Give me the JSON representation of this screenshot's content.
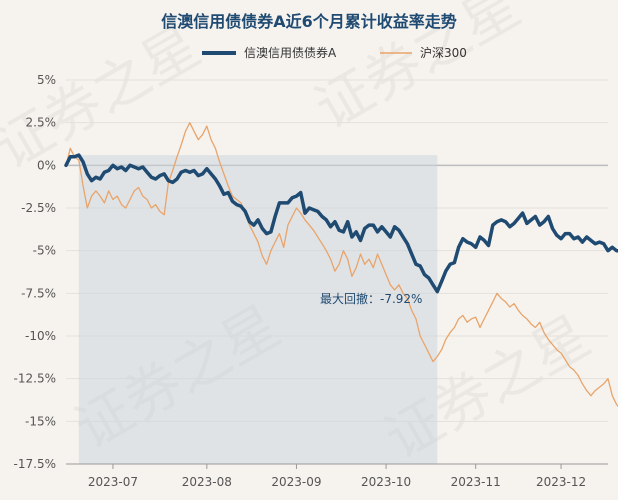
{
  "chart_data": {
    "type": "line",
    "title": "信澳信用债债券A近6个月累计收益率走势",
    "xlabel": "",
    "ylabel": "",
    "ylim": [
      -17.5,
      5
    ],
    "y_ticks": [
      "5%",
      "2.5%",
      "0%",
      "-2.5%",
      "-5%",
      "-7.5%",
      "-10%",
      "-12.5%",
      "-15%",
      "-17.5%"
    ],
    "y_tick_values": [
      5,
      2.5,
      0,
      -2.5,
      -5,
      -7.5,
      -10,
      -12.5,
      -15,
      -17.5
    ],
    "x_tick_labels": [
      "2023-07",
      "2023-08",
      "2023-09",
      "2023-10",
      "2023-11",
      "2023-12"
    ],
    "x_tick_positions": [
      11,
      33,
      54,
      75,
      96,
      116
    ],
    "x_range": [
      0,
      127
    ],
    "grid": true,
    "legend_position": "top-center",
    "drawdown_region": [
      3,
      87
    ],
    "annotation": "最大回撤：-7.92%",
    "watermark": "证券之星",
    "series": [
      {
        "name": "信澳信用债债券A",
        "color": "#1f4a72",
        "values": [
          0,
          0.5,
          0.5,
          0.6,
          0.2,
          -0.5,
          -0.9,
          -0.7,
          -0.8,
          -0.4,
          -0.3,
          0,
          -0.2,
          -0.1,
          -0.3,
          0,
          -0.1,
          -0.2,
          -0.1,
          -0.4,
          -0.7,
          -0.8,
          -0.6,
          -0.5,
          -0.9,
          -1.0,
          -0.8,
          -0.4,
          -0.3,
          -0.4,
          -0.3,
          -0.6,
          -0.5,
          -0.2,
          -0.5,
          -0.8,
          -1.2,
          -1.7,
          -1.6,
          -2.1,
          -2.3,
          -2.4,
          -2.7,
          -3.3,
          -3.5,
          -3.2,
          -3.7,
          -4.0,
          -3.9,
          -3.0,
          -2.2,
          -2.2,
          -2.2,
          -1.9,
          -1.8,
          -1.6,
          -2.8,
          -2.5,
          -2.6,
          -2.7,
          -3.0,
          -3.2,
          -3.6,
          -3.3,
          -3.8,
          -3.9,
          -3.3,
          -4.2,
          -3.9,
          -4.4,
          -3.7,
          -3.5,
          -3.5,
          -3.9,
          -3.6,
          -3.9,
          -4.2,
          -3.6,
          -3.8,
          -4.2,
          -4.6,
          -5.2,
          -5.8,
          -5.9,
          -6.4,
          -6.6,
          -7.0,
          -7.4,
          -6.8,
          -6.2,
          -5.8,
          -5.7,
          -4.8,
          -4.3,
          -4.5,
          -4.6,
          -4.8,
          -4.2,
          -4.4,
          -4.7,
          -3.5,
          -3.3,
          -3.2,
          -3.3,
          -3.6,
          -3.4,
          -3.1,
          -2.8,
          -3.4,
          -3.2,
          -3.0,
          -3.5,
          -3.3,
          -3.0,
          -3.7,
          -4.1,
          -4.3,
          -4.0,
          -4.0,
          -4.3,
          -4.2,
          -4.5,
          -4.2,
          -4.4,
          -4.6,
          -4.5,
          -4.6,
          -5.0,
          -4.8,
          -5.0,
          -5.0,
          -4.8,
          -4.6,
          -4.7,
          -4.8,
          -5.1,
          -5.3
        ]
      },
      {
        "name": "沪深300",
        "color": "#e8a46a",
        "values": [
          0,
          1.0,
          0.5,
          0.3,
          -1.2,
          -2.5,
          -1.8,
          -1.5,
          -1.8,
          -2.2,
          -1.5,
          -2.0,
          -1.8,
          -2.3,
          -2.5,
          -2.0,
          -1.5,
          -1.3,
          -1.8,
          -2.0,
          -2.5,
          -2.3,
          -2.7,
          -2.9,
          -1.0,
          -0.3,
          0.5,
          1.2,
          2.0,
          2.5,
          2.0,
          1.5,
          1.8,
          2.3,
          1.5,
          1.0,
          0.2,
          -0.5,
          -1.2,
          -1.8,
          -2.0,
          -2.2,
          -2.8,
          -3.5,
          -4.0,
          -4.5,
          -5.3,
          -5.8,
          -5.0,
          -4.5,
          -4.0,
          -4.8,
          -3.5,
          -3.0,
          -2.5,
          -2.8,
          -3.2,
          -3.5,
          -3.8,
          -4.2,
          -4.6,
          -5.0,
          -5.5,
          -6.2,
          -5.8,
          -5.0,
          -5.5,
          -6.5,
          -6.0,
          -5.2,
          -5.8,
          -5.5,
          -6.0,
          -5.2,
          -5.8,
          -6.4,
          -7.0,
          -7.3,
          -7.0,
          -7.5,
          -7.8,
          -8.5,
          -9.0,
          -10.0,
          -10.5,
          -11.0,
          -11.5,
          -11.2,
          -10.8,
          -10.2,
          -9.8,
          -9.5,
          -9.0,
          -8.8,
          -9.2,
          -9.0,
          -8.9,
          -9.5,
          -9.0,
          -8.5,
          -8.0,
          -7.5,
          -7.8,
          -8.0,
          -8.3,
          -8.1,
          -8.5,
          -8.8,
          -9.0,
          -9.3,
          -9.5,
          -9.2,
          -9.8,
          -10.2,
          -10.5,
          -10.8,
          -11.0,
          -11.4,
          -11.8,
          -12.0,
          -12.3,
          -12.8,
          -13.2,
          -13.5,
          -13.2,
          -13.0,
          -12.8,
          -12.5,
          -13.5,
          -14.0,
          -14.3,
          -14.6,
          -14.8
        ]
      }
    ]
  }
}
